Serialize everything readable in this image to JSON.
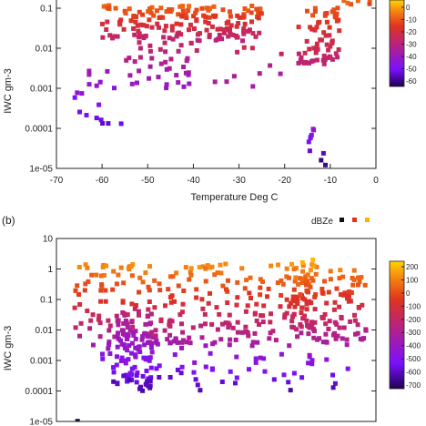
{
  "chart_data": [
    {
      "type": "scatter",
      "panel_label": "",
      "xlabel": "Temperature Deg C",
      "ylabel": "IWC gm-3",
      "xlim": [
        -70,
        0
      ],
      "ylim": [
        1e-05,
        0.3
      ],
      "yscale": "log",
      "xticks": [
        "-70",
        "-60",
        "-50",
        "-40",
        "-30",
        "-20",
        "-10",
        "0"
      ],
      "yticks": [
        "1e-05",
        "0.0001",
        "0.001",
        "0.01",
        "0.1"
      ],
      "legend_label": "",
      "colorbar": {
        "label": "dBZe",
        "ticks": [
          "0",
          "-10",
          "-20",
          "-30",
          "-40",
          "-50",
          "-60"
        ],
        "range": [
          -70,
          10
        ]
      },
      "clusters": [
        {
          "x": [
            -60,
            -25
          ],
          "y": [
            0.015,
            0.12
          ],
          "dbz": [
            -30,
            -5
          ],
          "n": 170
        },
        {
          "x": [
            -55,
            -40
          ],
          "y": [
            0.001,
            0.015
          ],
          "dbz": [
            -45,
            -25
          ],
          "n": 40
        },
        {
          "x": [
            -66,
            -55
          ],
          "y": [
            0.0001,
            0.003
          ],
          "dbz": [
            -60,
            -40
          ],
          "n": 18
        },
        {
          "x": [
            -17,
            -8
          ],
          "y": [
            0.004,
            0.12
          ],
          "dbz": [
            -30,
            -8
          ],
          "n": 70
        },
        {
          "x": [
            -15,
            -11
          ],
          "y": [
            1.2e-05,
            0.0001
          ],
          "dbz": [
            -65,
            -45
          ],
          "n": 10
        },
        {
          "x": [
            -8,
            -1
          ],
          "y": [
            0.12,
            0.3
          ],
          "dbz": [
            -10,
            5
          ],
          "n": 18
        },
        {
          "x": [
            -40,
            -20
          ],
          "y": [
            0.001,
            0.012
          ],
          "dbz": [
            -40,
            -22
          ],
          "n": 12
        }
      ]
    },
    {
      "type": "scatter",
      "panel_label": "(b)",
      "xlabel": "",
      "ylabel": "IWC gm-3",
      "xlim": [
        -70,
        0
      ],
      "ylim": [
        1e-05,
        10
      ],
      "yscale": "log",
      "xticks": [],
      "yticks": [
        "1e-05",
        "0.0001",
        "0.001",
        "0.01",
        "0.1",
        "1",
        "10"
      ],
      "legend_label": "dBZe",
      "colorbar": {
        "label": "dBZe",
        "ticks": [
          "200",
          "100",
          "0",
          "-100",
          "-200",
          "-300",
          "-400",
          "-500",
          "-600",
          "-700"
        ],
        "range": [
          -70,
          20
        ]
      },
      "clusters": [
        {
          "x": [
            -66,
            -2
          ],
          "y": [
            0.003,
            1.5
          ],
          "dbz": [
            -35,
            10
          ],
          "n": 330
        },
        {
          "x": [
            -57,
            -49
          ],
          "y": [
            0.0001,
            0.05
          ],
          "dbz": [
            -60,
            -25
          ],
          "n": 90
        },
        {
          "x": [
            -60,
            -35
          ],
          "y": [
            0.0002,
            0.005
          ],
          "dbz": [
            -60,
            -35
          ],
          "n": 45
        },
        {
          "x": [
            -20,
            -13
          ],
          "y": [
            0.01,
            2
          ],
          "dbz": [
            -25,
            15
          ],
          "n": 50
        },
        {
          "x": [
            -40,
            -5
          ],
          "y": [
            0.0001,
            0.002
          ],
          "dbz": [
            -60,
            -40
          ],
          "n": 35
        },
        {
          "x": [
            -66,
            -64
          ],
          "y": [
            1e-05,
            1.2e-05
          ],
          "dbz": [
            -70,
            -70
          ],
          "n": 1
        }
      ]
    }
  ]
}
